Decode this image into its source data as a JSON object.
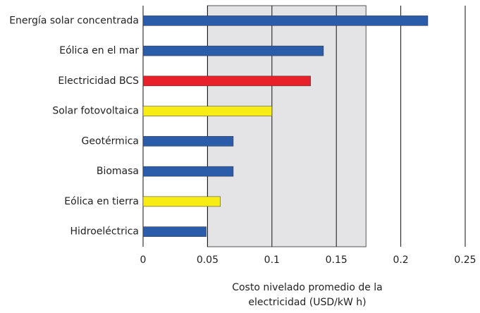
{
  "chart_data": {
    "type": "barh",
    "categories": [
      "Energía solar concentrada",
      "Eólica en el mar",
      "Electricidad BCS",
      "Solar fotovoltaica",
      "Geotérmica",
      "Biomasa",
      "Eólica en tierra",
      "Hidroeléctrica"
    ],
    "values": [
      0.221,
      0.14,
      0.13,
      0.1,
      0.07,
      0.07,
      0.06,
      0.049
    ],
    "colors": [
      "#2a5caa",
      "#2a5caa",
      "#e8202a",
      "#f7ec13",
      "#2a5caa",
      "#2a5caa",
      "#f7ec13",
      "#2a5caa"
    ],
    "shaded_range": [
      0.05,
      0.173
    ],
    "shaded_color": "#e4e4e6",
    "xlim": [
      0,
      0.25
    ],
    "xticks": [
      0,
      0.05,
      0.1,
      0.15,
      0.2,
      0.25
    ],
    "grid": true,
    "xlabel": "Costo nivelado promedio de la electricidad (USD/kW h)"
  }
}
